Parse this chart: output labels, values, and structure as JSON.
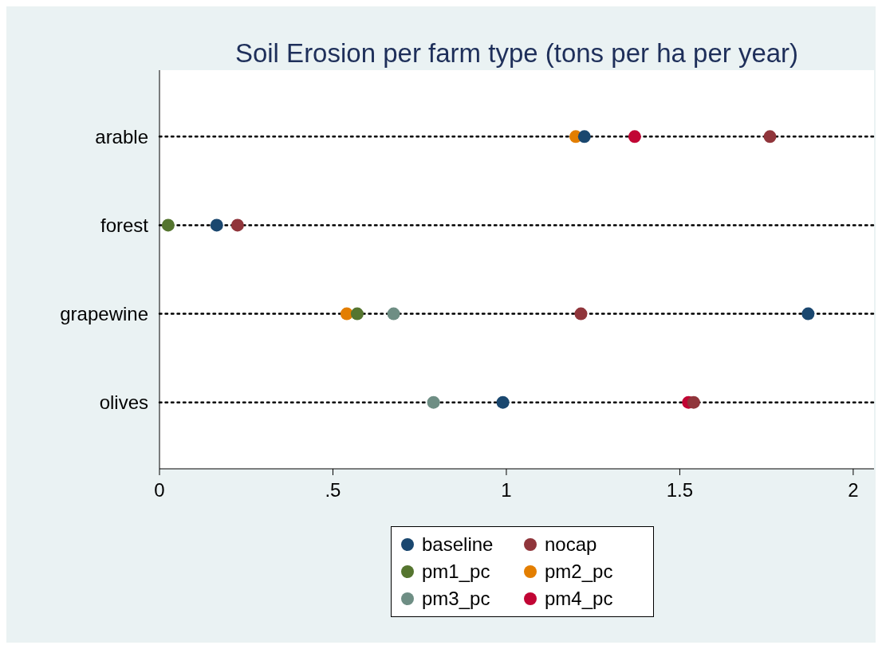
{
  "chart_data": {
    "type": "scatter",
    "title": "Soil Erosion per farm type (tons per ha per year)",
    "categories": [
      "arable",
      "forest",
      "grapewine",
      "olives"
    ],
    "series": [
      {
        "name": "baseline",
        "color": "#1a476f",
        "values": [
          1.225,
          0.165,
          1.87,
          0.99
        ]
      },
      {
        "name": "nocap",
        "color": "#90353b",
        "values": [
          1.76,
          0.225,
          1.215,
          1.54
        ]
      },
      {
        "name": "pm1_pc",
        "color": "#55752f",
        "values": [
          null,
          0.025,
          0.57,
          null
        ]
      },
      {
        "name": "pm2_pc",
        "color": "#e37e00",
        "values": [
          1.2,
          null,
          0.54,
          null
        ]
      },
      {
        "name": "pm3_pc",
        "color": "#6e8e84",
        "values": [
          null,
          null,
          0.675,
          0.79
        ]
      },
      {
        "name": "pm4_pc",
        "color": "#c10534",
        "values": [
          1.37,
          null,
          null,
          1.525
        ]
      }
    ],
    "orientation": "horizontal",
    "xlim": [
      0,
      2.06
    ],
    "xticks": [
      0,
      {
        "value": 0.5,
        "label": ".5"
      },
      1,
      1.5,
      2
    ],
    "grid": "y",
    "line_style": "dotted",
    "marker": "circle",
    "legend": "bottom"
  }
}
